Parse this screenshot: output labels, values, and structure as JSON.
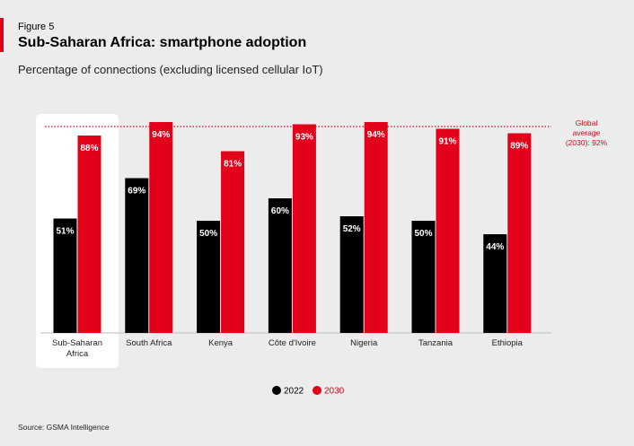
{
  "header": {
    "figure_label": "Figure 5",
    "title": "Sub-Saharan Africa: smartphone adoption",
    "subtitle": "Percentage of connections (excluding licensed cellular IoT)"
  },
  "source": "Source: GSMA Intelligence",
  "colors": {
    "series_2022": "#000000",
    "series_2030": "#e2001a",
    "highlight_panel": "#ffffff",
    "background": "#ececec"
  },
  "chart_data": {
    "type": "bar",
    "title": "Sub-Saharan Africa: smartphone adoption",
    "ylabel": "",
    "xlabel": "",
    "ylim": [
      0,
      100
    ],
    "grid": false,
    "legend_position": "bottom-center",
    "highlighted_category_index": 0,
    "categories": [
      [
        "Sub-Saharan",
        "Africa"
      ],
      [
        "South Africa"
      ],
      [
        "Kenya"
      ],
      [
        "Côte d'Ivoire"
      ],
      [
        "Nigeria"
      ],
      [
        "Tanzania"
      ],
      [
        "Ethiopia"
      ]
    ],
    "series": [
      {
        "name": "2022",
        "values": [
          51,
          69,
          50,
          60,
          52,
          50,
          44
        ],
        "labels": [
          "51%",
          "69%",
          "50%",
          "60%",
          "52%",
          "50%",
          "44%"
        ]
      },
      {
        "name": "2030",
        "values": [
          88,
          94,
          81,
          93,
          94,
          91,
          89
        ],
        "labels": [
          "88%",
          "94%",
          "81%",
          "93%",
          "94%",
          "91%",
          "89%"
        ]
      }
    ],
    "reference_line": {
      "value": 92,
      "label_lines": [
        "Global",
        "average",
        "(2030): 92%"
      ]
    }
  }
}
